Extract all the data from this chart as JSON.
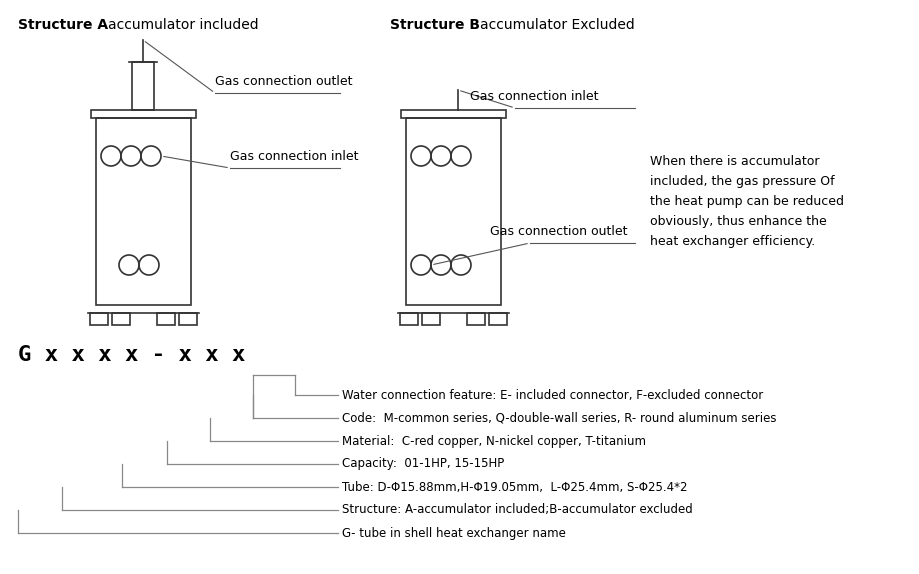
{
  "bg_color": "#ffffff",
  "title_a": "Structure A",
  "title_a_suffix": "  accumulator included",
  "title_b": "Structure B",
  "title_b_suffix": "  accumulator Excluded",
  "label_gas_outlet_a": "Gas connection outlet",
  "label_gas_inlet_a": "Gas connection inlet",
  "label_gas_inlet_b": "Gas connection inlet",
  "label_gas_outlet_b": "Gas connection outlet",
  "description": "When there is accumulator\nincluded, the gas pressure Of\nthe heat pump can be reduced\nobviously, thus enhance the\nheat exchanger efficiency.",
  "model_code": "G x x x x - x x x",
  "model_lines": [
    "Water connection feature: E- included connector, F-excluded connector",
    "Code:  M-common series, Q-double-wall series, R- round aluminum series",
    "Material:  C-red copper, N-nickel copper, T-titanium",
    "Capacity:  01-1HP, 15-15HP",
    "Tube: D-Φ15.88mm,H-Φ19.05mm,  L-Φ25.4mm, S-Φ25.4*2",
    "Structure: A-accumulator included;B-accumulator excluded",
    "G- tube in shell heat exchanger name"
  ],
  "draw_color": "#333333",
  "line_color": "#888888",
  "text_color": "#000000"
}
